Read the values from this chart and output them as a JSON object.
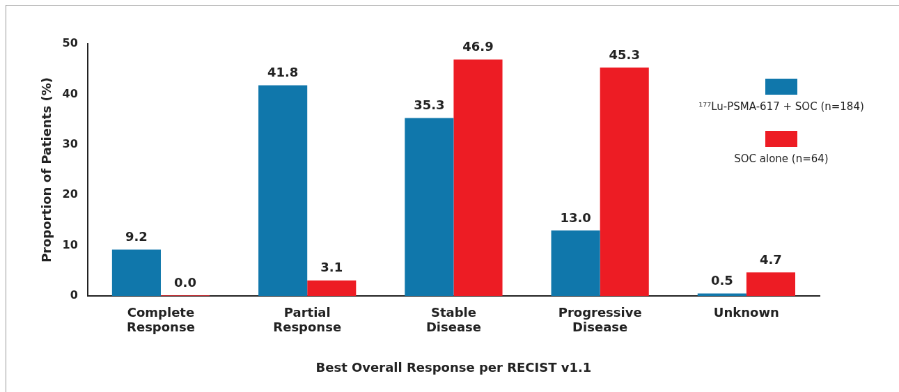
{
  "chart_data": {
    "type": "bar",
    "xlabel": "Best Overall Response per RECIST v1.1",
    "ylabel": "Proportion of Patients (%)",
    "categories": [
      "Complete Response",
      "Partial Response",
      "Stable Disease",
      "Progressive Disease",
      "Unknown"
    ],
    "series": [
      {
        "name": "¹⁷⁷Lu-PSMA-617 + SOC (n=184)",
        "color": "#1077ab",
        "values": [
          9.2,
          41.8,
          35.3,
          13.0,
          0.5
        ],
        "value_labels": [
          "9.2",
          "41.8",
          "35.3",
          "13.0",
          "0.5"
        ]
      },
      {
        "name": "SOC alone (n=64)",
        "color": "#ed1c24",
        "values": [
          0,
          3.1,
          46.9,
          45.3,
          4.7
        ],
        "value_labels": [
          "0.0",
          "3.1",
          "46.9",
          "45.3",
          "4.7"
        ]
      }
    ],
    "ylim": [
      0,
      50
    ],
    "yticks": [
      0,
      10,
      20,
      30,
      40,
      50
    ],
    "grid": false,
    "legend": "top right"
  }
}
